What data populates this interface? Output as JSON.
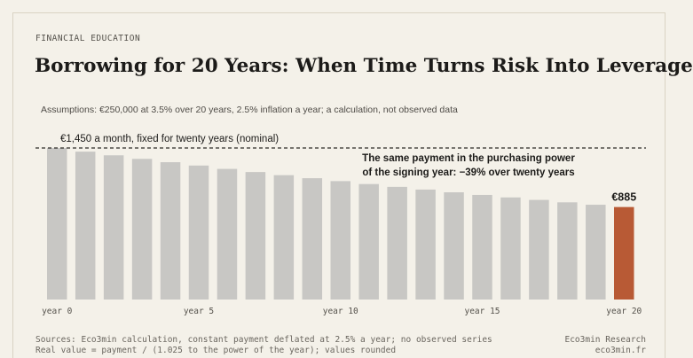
{
  "header": {
    "kicker": "FINANCIAL EDUCATION",
    "title": "Borrowing for 20 Years: When Time Turns Risk Into Leverage",
    "subtitle": "Assumptions: €250,000 at 3.5% over 20 years, 2.5% inflation a year; a calculation, not observed data"
  },
  "chart_data": {
    "type": "bar",
    "categories": [
      "0",
      "1",
      "2",
      "3",
      "4",
      "5",
      "6",
      "7",
      "8",
      "9",
      "10",
      "11",
      "12",
      "13",
      "14",
      "15",
      "16",
      "17",
      "18",
      "19",
      "20"
    ],
    "values": [
      1450,
      1415,
      1380,
      1346,
      1314,
      1282,
      1250,
      1220,
      1190,
      1161,
      1133,
      1105,
      1078,
      1052,
      1026,
      1001,
      977,
      953,
      930,
      907,
      885
    ],
    "ylim": [
      0,
      1450
    ],
    "x_tick_labels": [
      "year 0",
      "year 5",
      "year 10",
      "year 15",
      "year 20"
    ],
    "x_tick_positions": [
      0,
      5,
      10,
      15,
      20
    ],
    "reference_line": {
      "value": 1450,
      "label": "€1,450 a month, fixed for twenty years (nominal)"
    },
    "annotation_lines": [
      "The same payment in the purchasing power",
      "of the signing year: −39% over twenty years"
    ],
    "highlight": {
      "index": 20,
      "label": "€885",
      "color": "#b85a35"
    },
    "bar_color": "#c8c7c4",
    "grid": false
  },
  "footer": {
    "sources": "Sources: Eco3min calculation, constant payment deflated at 2.5% a year; no observed series",
    "formula": "Real value = payment / (1.025 to the power of the year); values rounded",
    "brand": "Eco3min Research",
    "site": "eco3min.fr"
  }
}
